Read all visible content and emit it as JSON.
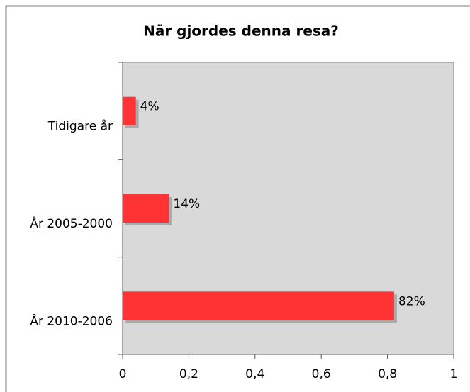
{
  "chart_data": {
    "type": "bar",
    "orientation": "horizontal",
    "title": "När gjordes denna resa?",
    "categories": [
      "Tidigare år",
      "År 2005-2000",
      "År 2010-2006"
    ],
    "values": [
      0.04,
      0.14,
      0.82
    ],
    "value_labels": [
      "4%",
      "14%",
      "82%"
    ],
    "color": "#ff3333",
    "xlim": [
      0,
      1
    ],
    "xticks": [
      0,
      {
        "value": 0.2,
        "label": "0,2"
      },
      {
        "value": 0.4,
        "label": "0,4"
      },
      {
        "value": 0.6,
        "label": "0,6"
      },
      {
        "value": 0.8,
        "label": "0,8"
      },
      1
    ]
  }
}
